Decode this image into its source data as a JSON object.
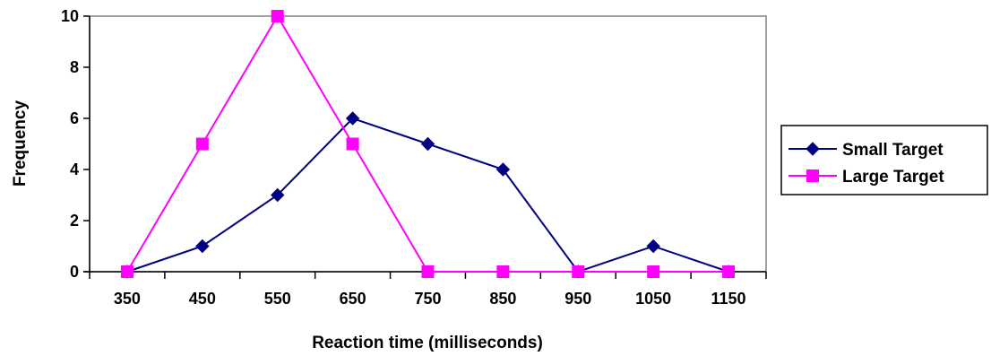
{
  "chart_data": {
    "type": "line",
    "xlabel": "Reaction time (milliseconds)",
    "ylabel": "Frequency",
    "categories": [
      "350",
      "450",
      "550",
      "650",
      "750",
      "850",
      "950",
      "1050",
      "1150"
    ],
    "ylim": [
      0,
      10
    ],
    "yticks": [
      0,
      2,
      4,
      6,
      8,
      10
    ],
    "grid": false,
    "legend_position": "right",
    "series": [
      {
        "name": "Small Target",
        "color": "#000080",
        "marker": "diamond",
        "values": [
          0,
          1,
          3,
          6,
          5,
          4,
          0,
          1,
          0
        ]
      },
      {
        "name": "Large Target",
        "color": "#FF00FF",
        "marker": "square",
        "values": [
          0,
          5,
          10,
          5,
          0,
          0,
          0,
          0,
          0
        ]
      }
    ]
  }
}
